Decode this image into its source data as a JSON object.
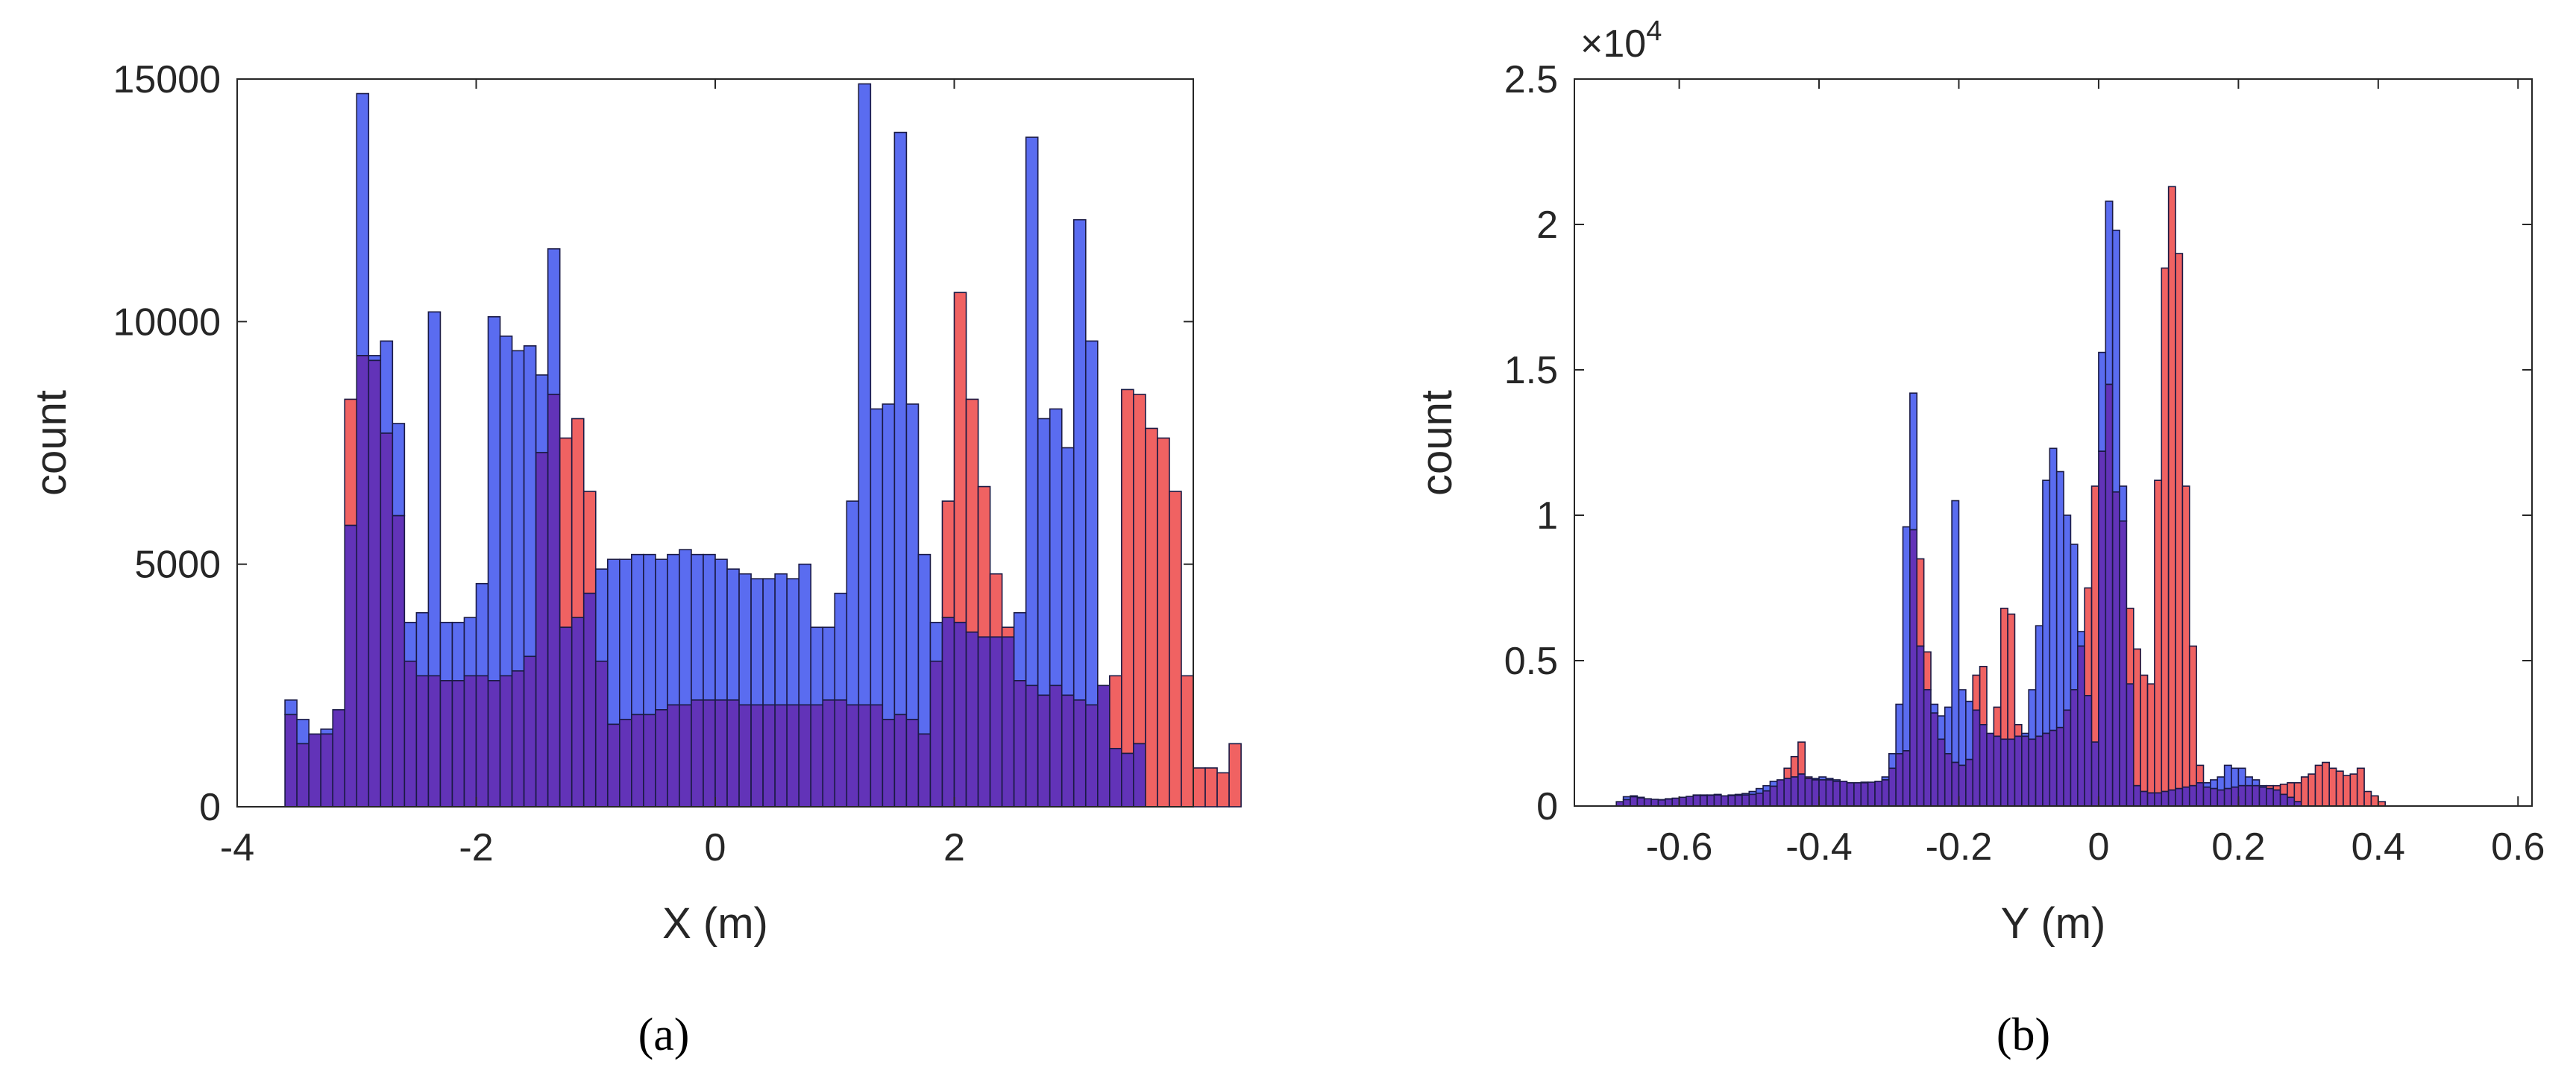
{
  "captions": {
    "a": "(a)",
    "b": "(b)"
  },
  "colors": {
    "red": "#f06262",
    "blue": "#5a6cf0",
    "overlap": "#6233b8",
    "edge": "#1a1a44"
  },
  "chart_data": [
    {
      "type": "bar",
      "subtype": "overlaid-histogram",
      "title": "",
      "xlabel": "X (m)",
      "ylabel": "count",
      "xlim": [
        -4,
        4
      ],
      "ylim": [
        0,
        15000
      ],
      "xticks": [
        -4,
        -2,
        0,
        2
      ],
      "xtick_labels": [
        "-4",
        "-2",
        "0",
        "2"
      ],
      "yticks": [
        0,
        5000,
        10000,
        15000
      ],
      "ytick_labels": [
        "0",
        "5000",
        "10000",
        "15000"
      ],
      "exponent_label": "",
      "bin_start": -3.6,
      "bin_width": 0.1,
      "series": [
        {
          "color": "red",
          "values": [
            1900,
            1300,
            1500,
            1500,
            2000,
            8400,
            9300,
            9200,
            7700,
            6000,
            3000,
            2700,
            2700,
            2600,
            2600,
            2700,
            2700,
            2600,
            2700,
            2800,
            3100,
            7300,
            8500,
            7600,
            8000,
            6500,
            3000,
            1700,
            1800,
            1900,
            1900,
            2000,
            2100,
            2100,
            2200,
            2200,
            2200,
            2200,
            2100,
            2100,
            2100,
            2100,
            2100,
            2100,
            2100,
            2200,
            2200,
            2100,
            2100,
            2100,
            1800,
            1900,
            1800,
            1500,
            3000,
            6300,
            10600,
            8400,
            6600,
            4800,
            3700,
            2600,
            2500,
            2300,
            2500,
            2300,
            2200,
            2100,
            2500,
            2700,
            8600,
            8500,
            7800,
            7600,
            6500,
            2700,
            800,
            800,
            700,
            1300
          ]
        },
        {
          "color": "blue",
          "values": [
            2200,
            1800,
            1500,
            1600,
            2000,
            5800,
            14700,
            9300,
            9600,
            7900,
            3800,
            4000,
            10200,
            3800,
            3800,
            3900,
            4600,
            10100,
            9700,
            9400,
            9500,
            8900,
            11500,
            3700,
            3900,
            4400,
            4900,
            5100,
            5100,
            5200,
            5200,
            5100,
            5200,
            5300,
            5200,
            5200,
            5100,
            4900,
            4800,
            4700,
            4700,
            4800,
            4700,
            5000,
            3700,
            3700,
            4400,
            6300,
            14900,
            8200,
            8300,
            13900,
            8300,
            5200,
            3800,
            3900,
            3800,
            3600,
            3500,
            3500,
            3500,
            4000,
            13800,
            8000,
            8200,
            7400,
            12100,
            9600,
            2500,
            1200,
            1100,
            1300
          ]
        }
      ]
    },
    {
      "type": "bar",
      "subtype": "overlaid-histogram",
      "title": "",
      "xlabel": "Y (m)",
      "ylabel": "count",
      "xlim": [
        -0.75,
        0.62
      ],
      "ylim": [
        0,
        25000
      ],
      "xticks": [
        -0.6,
        -0.4,
        -0.2,
        0,
        0.2,
        0.4,
        0.6
      ],
      "xtick_labels": [
        "-0.6",
        "-0.4",
        "-0.2",
        "0",
        "0.2",
        "0.4",
        "0.6"
      ],
      "yticks": [
        0,
        5000,
        10000,
        15000,
        20000,
        25000
      ],
      "ytick_labels": [
        "0",
        "0.5",
        "1",
        "1.5",
        "2",
        "2.5"
      ],
      "exponent_label": "×10",
      "exponent_power": "4",
      "bin_start": -0.69,
      "bin_width": 0.01,
      "series": [
        {
          "color": "red",
          "values": [
            150,
            220,
            320,
            280,
            250,
            230,
            210,
            240,
            270,
            300,
            330,
            370,
            360,
            370,
            400,
            350,
            360,
            370,
            380,
            400,
            440,
            520,
            680,
            900,
            1300,
            1700,
            2200,
            1000,
            900,
            900,
            900,
            850,
            850,
            800,
            800,
            820,
            820,
            850,
            900,
            1300,
            1800,
            1900,
            9500,
            8500,
            5300,
            3200,
            2300,
            1800,
            1500,
            1400,
            1600,
            4500,
            4800,
            2500,
            3400,
            6800,
            6600,
            2800,
            2400,
            2300,
            2400,
            2500,
            2600,
            2700,
            3300,
            4000,
            5500,
            7500,
            11000,
            12200,
            14500,
            10800,
            9800,
            6800,
            5400,
            4500,
            4200,
            11200,
            18500,
            21300,
            19000,
            11000,
            5500,
            1400,
            650,
            600,
            550,
            600,
            650,
            700,
            700,
            700,
            650,
            700,
            700,
            750,
            800,
            800,
            1000,
            1100,
            1400,
            1500,
            1300,
            1200,
            1050,
            1100,
            1300,
            500,
            350,
            150
          ]
        },
        {
          "color": "blue",
          "values": [
            150,
            320,
            350,
            300,
            250,
            230,
            220,
            250,
            270,
            300,
            330,
            380,
            380,
            380,
            380,
            350,
            380,
            400,
            430,
            500,
            600,
            700,
            850,
            900,
            950,
            1000,
            1100,
            950,
            950,
            1000,
            950,
            900,
            850,
            800,
            800,
            800,
            820,
            850,
            1000,
            1800,
            3500,
            9600,
            14200,
            5500,
            4000,
            3500,
            3100,
            3400,
            10500,
            4000,
            3600,
            3300,
            2800,
            2500,
            2400,
            2300,
            2300,
            2400,
            2500,
            4000,
            6200,
            11200,
            12300,
            11500,
            10000,
            9000,
            6000,
            3800,
            2200,
            15600,
            20800,
            19800,
            11000,
            4200,
            700,
            500,
            450,
            450,
            500,
            550,
            600,
            650,
            700,
            800,
            800,
            900,
            1000,
            1400,
            1300,
            1300,
            1000,
            900,
            700,
            600,
            550,
            400,
            300,
            150
          ]
        }
      ]
    }
  ]
}
